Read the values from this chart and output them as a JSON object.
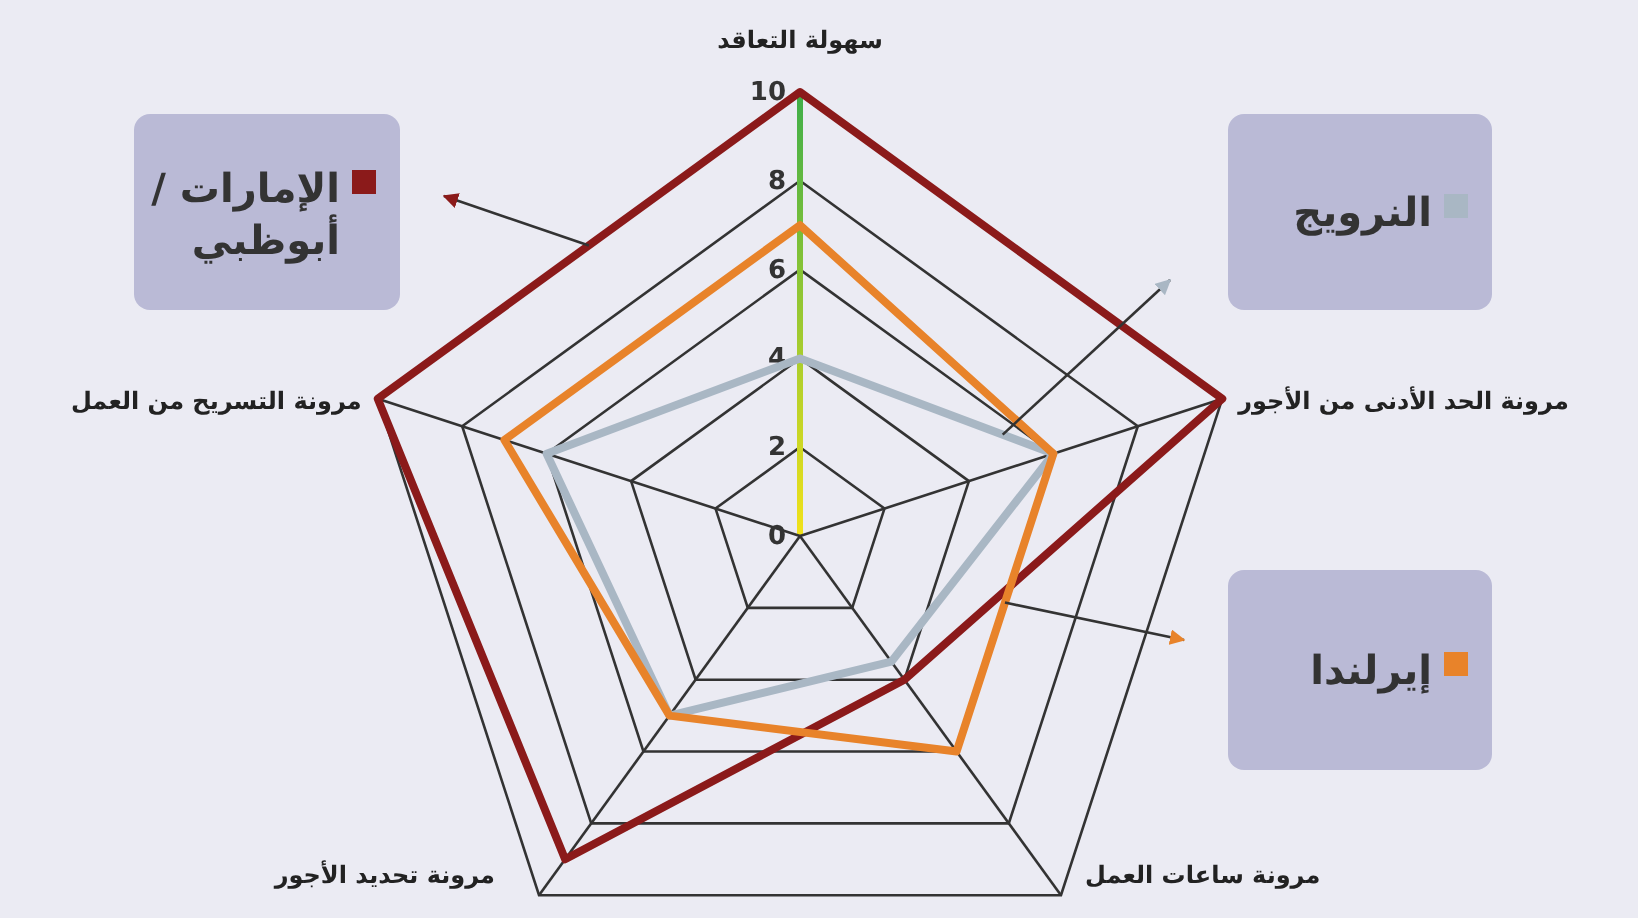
{
  "chart_data": {
    "type": "radar",
    "categories": [
      "سهولة التعاقد",
      "مرونة الحد الأدنى من الأجور",
      "مرونة ساعات العمل",
      "مرونة تحديد الأجور",
      "مرونة التسريح من العمل"
    ],
    "series": [
      {
        "name": "الإمارات / أبوظبي",
        "color": "#8b1a1a",
        "values": [
          10,
          10,
          4,
          9,
          10
        ]
      },
      {
        "name": "النرويج",
        "color": "#a9b7c4",
        "values": [
          4,
          6,
          3.5,
          5,
          6
        ]
      },
      {
        "name": "إيرلندا",
        "color": "#e8832a",
        "values": [
          7,
          6,
          6,
          5,
          7
        ]
      }
    ],
    "ylim": [
      0,
      10
    ],
    "yticks": [
      0,
      2,
      4,
      6,
      8,
      10
    ],
    "grid": true,
    "legend": "right"
  }
}
